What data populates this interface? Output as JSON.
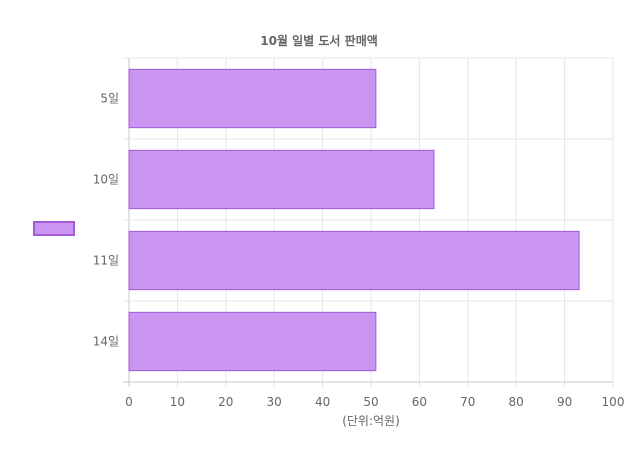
{
  "chart_data": {
    "type": "bar",
    "orientation": "horizontal",
    "title": "10월 일별 도서 판매액",
    "xlabel": "(단위:억원)",
    "ylabel": "",
    "categories": [
      "5일",
      "10일",
      "11일",
      "14일"
    ],
    "values": [
      51,
      63,
      93,
      51
    ],
    "xlim": [
      0,
      100
    ],
    "x_ticks": [
      0,
      10,
      20,
      30,
      40,
      50,
      60,
      70,
      80,
      90,
      100
    ],
    "grid": true,
    "legend": {
      "position": "left",
      "label": ""
    },
    "colors": {
      "bar_fill": "#c995f0",
      "bar_stroke": "#a35ad6",
      "grid": "#e6e6e6",
      "text": "#666666"
    }
  }
}
